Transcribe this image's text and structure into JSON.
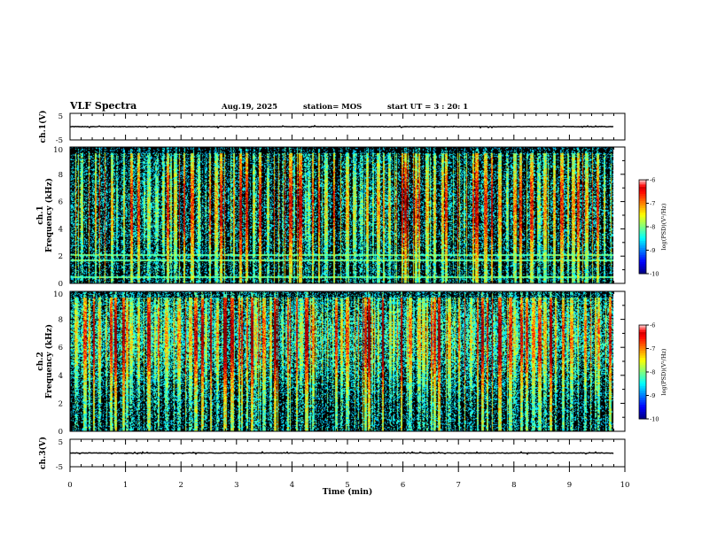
{
  "header": {
    "title": "VLF Spectra",
    "date": "Aug.19, 2025",
    "station": "station= MOS",
    "start": "start  UT =   3 : 20: 1"
  },
  "chart_data": {
    "type": "heatmap",
    "title": "VLF Spectra",
    "xlabel": "Time  (min)",
    "x_ticks": [
      "0",
      "1",
      "2",
      "3",
      "4",
      "5",
      "6",
      "7",
      "8",
      "9",
      "10"
    ],
    "xlim": [
      0,
      10
    ],
    "data_end_min": 9.8,
    "panels": [
      {
        "name": "ch1-waveform",
        "type": "line",
        "ylabel": "ch.1(V)",
        "y_ticks": [
          "5",
          "-5"
        ],
        "ylim": [
          -5,
          5
        ],
        "trace_level": 0
      },
      {
        "name": "ch1-spectrogram",
        "type": "heatmap",
        "ylabel_top": "ch.1",
        "ylabel": "Frequency  (kHz)",
        "y_ticks": [
          "0",
          "2",
          "4",
          "6",
          "8",
          "10"
        ],
        "ylim": [
          0,
          10
        ],
        "colorbar": {
          "label": "log(PSD)(V²/Hz)",
          "ticks": [
            "-6",
            "-7",
            "-8",
            "-9",
            "-10"
          ],
          "range": [
            -10,
            -6
          ]
        },
        "interference_lines_khz": [
          0.5,
          1.7,
          2.1
        ],
        "band_center_khz": 5.5
      },
      {
        "name": "ch2-spectrogram",
        "type": "heatmap",
        "ylabel_top": "ch.2",
        "ylabel": "Frequency  (kHz)",
        "y_ticks": [
          "0",
          "2",
          "4",
          "6",
          "8",
          "10"
        ],
        "ylim": [
          0,
          10
        ],
        "colorbar": {
          "label": "log(PSD)(V²/Hz)",
          "ticks": [
            "-6",
            "-7",
            "-8",
            "-9",
            "-10"
          ],
          "range": [
            -10,
            -6
          ]
        },
        "interference_lines_khz": [],
        "band_center_khz": 6.8
      },
      {
        "name": "ch3-waveform",
        "type": "line",
        "ylabel": "ch.3(V)",
        "y_ticks": [
          "5",
          "-5"
        ],
        "ylim": [
          -5,
          5
        ],
        "trace_level": 0
      }
    ]
  }
}
